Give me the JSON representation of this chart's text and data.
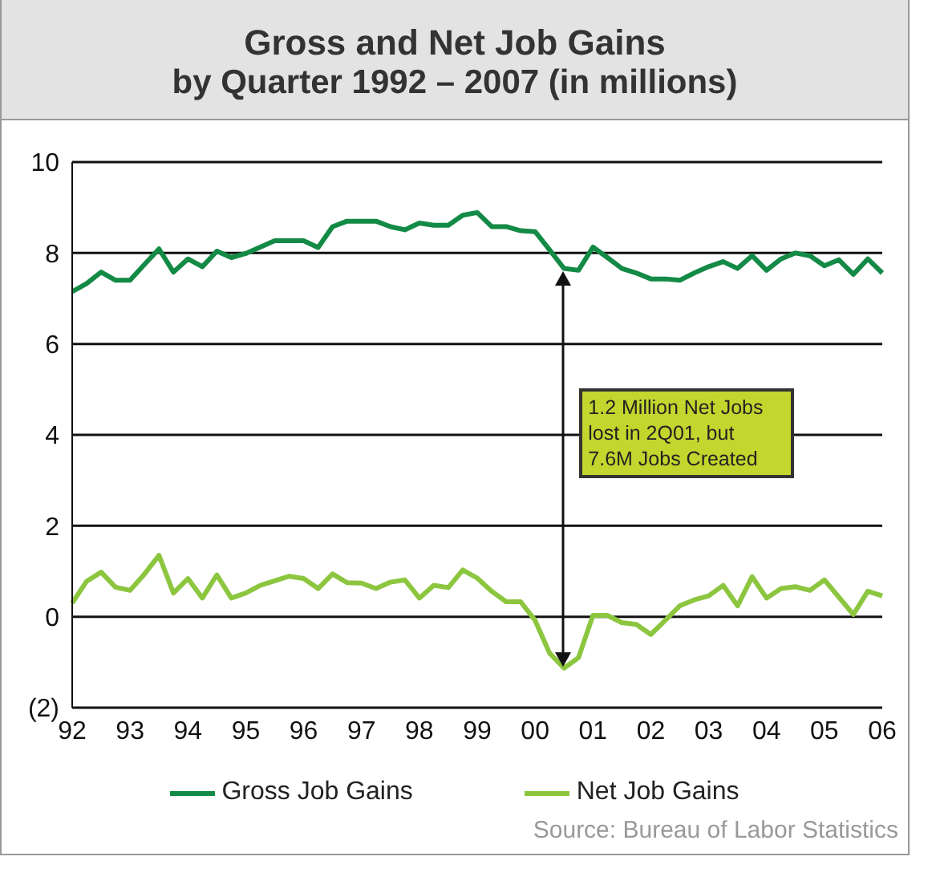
{
  "chart_data": {
    "type": "line",
    "title": "Gross and Net Job Gains",
    "subtitle": "by Quarter 1992 – 2007 (in millions)",
    "categories": [
      "92",
      null,
      null,
      null,
      "93",
      null,
      null,
      null,
      "94",
      null,
      null,
      null,
      "95",
      null,
      null,
      null,
      "96",
      null,
      null,
      null,
      "97",
      null,
      null,
      null,
      "98",
      null,
      null,
      null,
      "99",
      null,
      null,
      null,
      "00",
      null,
      null,
      null,
      "01",
      null,
      null,
      null,
      "02",
      null,
      null,
      null,
      "03",
      null,
      null,
      null,
      "04",
      null,
      null,
      null,
      "05",
      null,
      null,
      null,
      "06"
    ],
    "series": [
      {
        "name": "Gross Job Gains",
        "color": "#138a45",
        "values": [
          7.15,
          7.33,
          7.58,
          7.4,
          7.4,
          7.75,
          8.09,
          7.58,
          7.87,
          7.7,
          8.04,
          7.9,
          7.99,
          8.13,
          8.27,
          8.27,
          8.27,
          8.12,
          8.58,
          8.7,
          8.7,
          8.7,
          8.58,
          8.51,
          8.66,
          8.61,
          8.61,
          8.83,
          8.89,
          8.58,
          8.58,
          8.49,
          8.47,
          8.07,
          7.66,
          7.62,
          8.13,
          7.9,
          7.66,
          7.56,
          7.43,
          7.43,
          7.4,
          7.56,
          7.7,
          7.81,
          7.66,
          7.94,
          7.62,
          7.87,
          8.0,
          7.94,
          7.72,
          7.85,
          7.53,
          7.87,
          7.56
        ]
      },
      {
        "name": "Net Job Gains",
        "color": "#8cc63f",
        "values": [
          0.3,
          0.78,
          0.98,
          0.65,
          0.58,
          0.94,
          1.35,
          0.52,
          0.84,
          0.41,
          0.92,
          0.41,
          0.52,
          0.69,
          0.79,
          0.89,
          0.84,
          0.62,
          0.94,
          0.75,
          0.74,
          0.62,
          0.76,
          0.81,
          0.41,
          0.69,
          0.64,
          1.03,
          0.85,
          0.56,
          0.33,
          0.33,
          -0.08,
          -0.8,
          -1.13,
          -0.9,
          0.03,
          0.03,
          -0.13,
          -0.17,
          -0.39,
          -0.08,
          0.24,
          0.37,
          0.46,
          0.69,
          0.24,
          0.88,
          0.41,
          0.62,
          0.66,
          0.58,
          0.81,
          0.43,
          0.05,
          0.56,
          0.46
        ]
      }
    ],
    "ylim": [
      -2,
      10
    ],
    "yticks": [
      10,
      8,
      6,
      4,
      2,
      0,
      {
        "value": -2,
        "label": "(2)"
      }
    ],
    "grid": "y",
    "legend": "bottom",
    "marker": "none",
    "line_style": "solid",
    "annotations": [
      "1.2 Million Net Jobs lost in 2Q01, but 7.6M Jobs Created",
      "Source: Bureau of Labor Statistics"
    ]
  }
}
